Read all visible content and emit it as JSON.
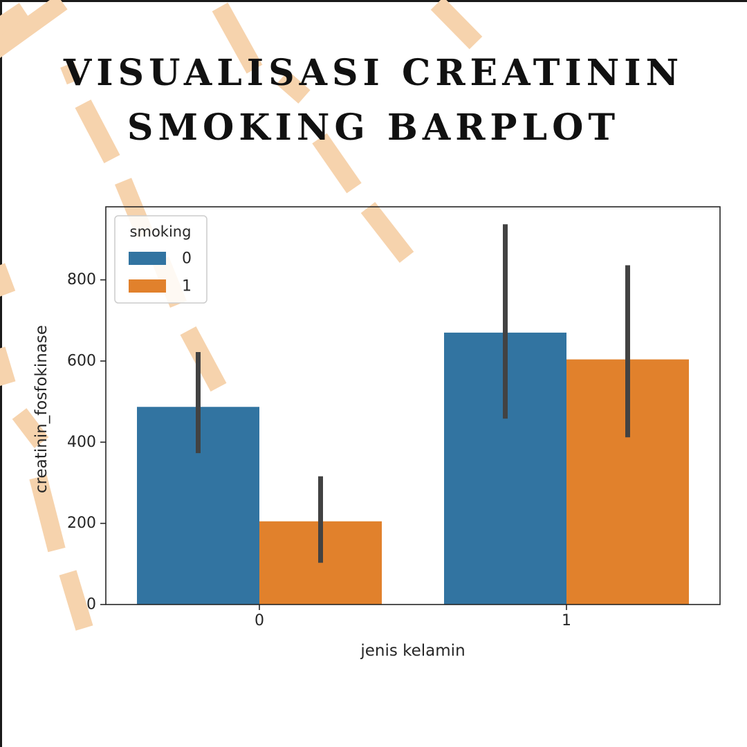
{
  "page": {
    "title_lines": [
      "VISUALISASI CREATININ",
      "SMOKING BARPLOT"
    ],
    "title_color": "#111111",
    "decoration_color": "#f6d3ad"
  },
  "chart_data": {
    "type": "bar",
    "categories": [
      "0",
      "1"
    ],
    "xlabel": "jenis kelamin",
    "ylabel": "creatinin_fosfokinase",
    "ylim": [
      0,
      980
    ],
    "yticks": [
      0,
      200,
      400,
      600,
      800
    ],
    "grid": false,
    "legend": {
      "title": "smoking",
      "placement": "top-left"
    },
    "series": [
      {
        "name": "0",
        "color": "#3274a1",
        "values": [
          487,
          670
        ],
        "ci_low": [
          373,
          458
        ],
        "ci_high": [
          622,
          937
        ]
      },
      {
        "name": "1",
        "color": "#e1812c",
        "values": [
          205,
          604
        ],
        "ci_low": [
          103,
          412
        ],
        "ci_high": [
          316,
          836
        ]
      }
    ]
  }
}
